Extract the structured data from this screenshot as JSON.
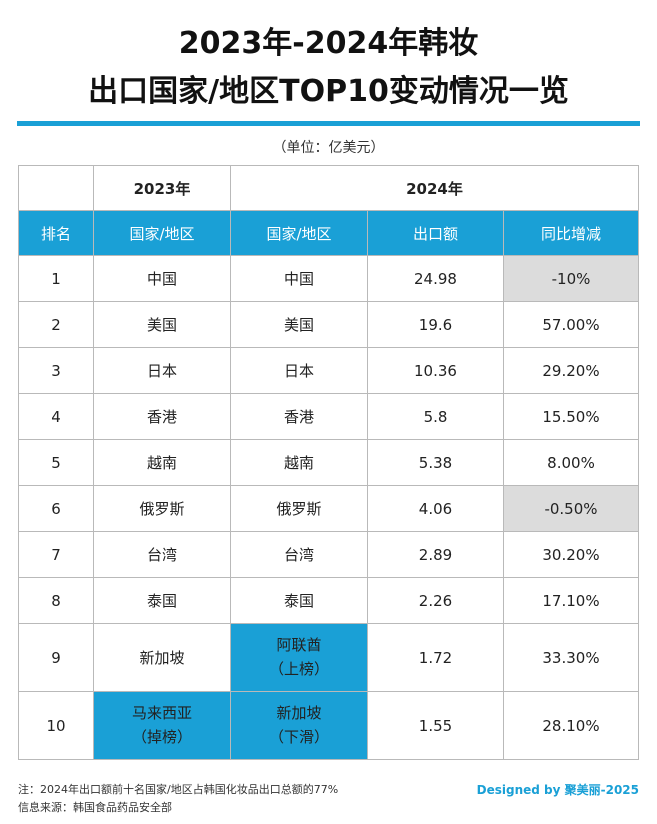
{
  "title": {
    "line1": "2023年-2024年韩妆",
    "line2": "出口国家/地区TOP10变动情况一览"
  },
  "unit": "（单位：亿美元）",
  "year_headers": {
    "y2023": "2023年",
    "y2024": "2024年"
  },
  "columns": [
    "排名",
    "国家/地区",
    "国家/地区",
    "出口额",
    "同比增减"
  ],
  "rows": [
    {
      "rank": "1",
      "c2023": "中国",
      "c2024": "中国",
      "value": "24.98",
      "change": "-10%"
    },
    {
      "rank": "2",
      "c2023": "美国",
      "c2024": "美国",
      "value": "19.6",
      "change": "57.00%"
    },
    {
      "rank": "3",
      "c2023": "日本",
      "c2024": "日本",
      "value": "10.36",
      "change": "29.20%"
    },
    {
      "rank": "4",
      "c2023": "香港",
      "c2024": "香港",
      "value": "5.8",
      "change": "15.50%"
    },
    {
      "rank": "5",
      "c2023": "越南",
      "c2024": "越南",
      "value": "5.38",
      "change": "8.00%"
    },
    {
      "rank": "6",
      "c2023": "俄罗斯",
      "c2024": "俄罗斯",
      "value": "4.06",
      "change": "-0.50%"
    },
    {
      "rank": "7",
      "c2023": "台湾",
      "c2024": "台湾",
      "value": "2.89",
      "change": "30.20%"
    },
    {
      "rank": "8",
      "c2023": "泰国",
      "c2024": "泰国",
      "value": "2.26",
      "change": "17.10%"
    },
    {
      "rank": "9",
      "c2023": "新加坡",
      "c2024": "阿联酋",
      "c2024_note": "（上榜）",
      "value": "1.72",
      "change": "33.30%"
    },
    {
      "rank": "10",
      "c2023": "马来西亚",
      "c2023_note": "（掉榜）",
      "c2024": "新加坡",
      "c2024_note": "（下滑）",
      "value": "1.55",
      "change": "28.10%"
    }
  ],
  "note": "注：2024年出口额前十名国家/地区占韩国化妆品出口总额的77%",
  "source": "信息来源：韩国食品药品安全部",
  "designed_by": "Designed by 聚美丽-2025",
  "colors": {
    "accent": "#1aa0d6",
    "negative_bg": "#dcdcdc"
  }
}
